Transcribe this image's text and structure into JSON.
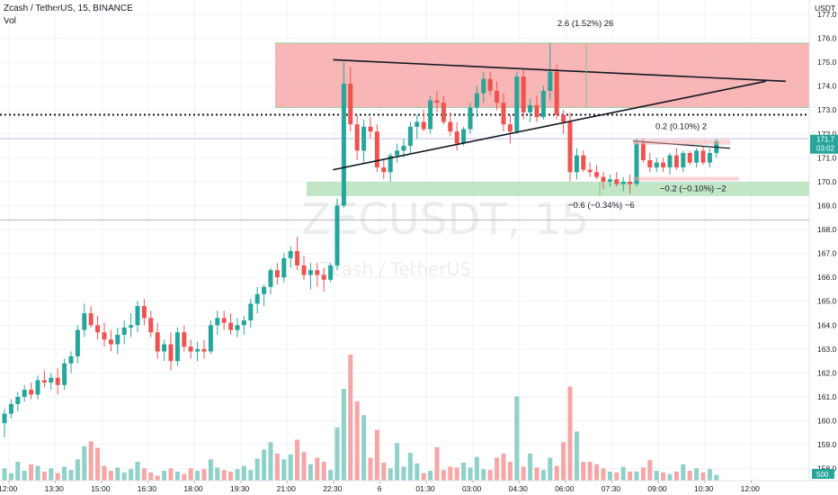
{
  "header": {
    "title": "Zcash / TetherUS, 15, BINANCE",
    "volume_label": "Vol"
  },
  "watermark": {
    "symbol": "ZECUSDT, 15",
    "name": "Zcash / TetherUS"
  },
  "axis": {
    "currency": "USDT",
    "current_price_label": "171.7",
    "countdown_label": "03:02",
    "volume_tag": "500"
  },
  "chart_data": {
    "type": "candlestick",
    "title": "Zcash / TetherUS, 15, BINANCE",
    "ylim": [
      157.5,
      177.6
    ],
    "y_ticks": [
      158.0,
      159.0,
      160.0,
      161.0,
      162.0,
      163.0,
      164.0,
      165.0,
      166.0,
      167.0,
      168.0,
      169.0,
      170.0,
      171.0,
      172.0,
      173.0,
      174.0,
      175.0,
      176.0,
      177.0
    ],
    "x_tick_labels": [
      "12:00",
      "13:30",
      "15:00",
      "16:30",
      "18:00",
      "19:30",
      "21:00",
      "22:30",
      "6",
      "01:30",
      "03:00",
      "04:30",
      "06:00",
      "07:30",
      "09:00",
      "10:30",
      "12:00"
    ],
    "volume_tag_value": 500,
    "candles_ohlc": [
      [
        159.9,
        160.5,
        159.3,
        160.3
      ],
      [
        160.3,
        160.9,
        160.1,
        160.7
      ],
      [
        160.7,
        161.2,
        160.4,
        161.0
      ],
      [
        161.0,
        161.5,
        160.8,
        161.3
      ],
      [
        161.3,
        161.6,
        160.9,
        161.1
      ],
      [
        161.1,
        161.9,
        160.9,
        161.7
      ],
      [
        161.7,
        162.1,
        161.4,
        161.6
      ],
      [
        161.6,
        162.0,
        161.3,
        161.8
      ],
      [
        161.8,
        162.2,
        161.1,
        161.5
      ],
      [
        161.5,
        162.6,
        161.3,
        162.4
      ],
      [
        162.4,
        162.9,
        162.0,
        162.7
      ],
      [
        162.7,
        164.0,
        162.4,
        163.8
      ],
      [
        163.8,
        164.9,
        163.5,
        164.5
      ],
      [
        164.5,
        164.8,
        163.9,
        164.0
      ],
      [
        164.0,
        164.4,
        163.4,
        163.7
      ],
      [
        163.7,
        164.1,
        163.1,
        163.4
      ],
      [
        163.4,
        163.8,
        162.9,
        163.2
      ],
      [
        163.2,
        163.9,
        162.8,
        163.6
      ],
      [
        163.6,
        164.2,
        163.2,
        163.9
      ],
      [
        163.9,
        164.5,
        163.5,
        164.0
      ],
      [
        164.0,
        165.0,
        163.7,
        164.8
      ],
      [
        164.8,
        165.1,
        164.0,
        164.3
      ],
      [
        164.3,
        164.6,
        163.5,
        163.7
      ],
      [
        163.7,
        164.1,
        162.6,
        162.9
      ],
      [
        162.9,
        163.4,
        162.5,
        163.2
      ],
      [
        163.2,
        163.7,
        162.1,
        162.5
      ],
      [
        162.5,
        163.9,
        162.3,
        163.7
      ],
      [
        163.7,
        164.0,
        162.9,
        163.1
      ],
      [
        163.1,
        163.4,
        162.6,
        162.9
      ],
      [
        162.9,
        163.3,
        162.5,
        163.0
      ],
      [
        163.0,
        163.4,
        162.6,
        162.9
      ],
      [
        162.9,
        164.2,
        162.8,
        164.0
      ],
      [
        164.0,
        164.6,
        163.6,
        164.3
      ],
      [
        164.3,
        164.6,
        163.8,
        164.1
      ],
      [
        164.1,
        164.5,
        163.6,
        163.8
      ],
      [
        163.8,
        164.3,
        163.5,
        164.0
      ],
      [
        164.0,
        164.4,
        163.6,
        164.2
      ],
      [
        164.2,
        165.1,
        163.9,
        164.9
      ],
      [
        164.9,
        165.6,
        164.5,
        165.3
      ],
      [
        165.3,
        165.7,
        164.8,
        165.6
      ],
      [
        165.6,
        166.4,
        165.3,
        166.3
      ],
      [
        166.3,
        166.6,
        165.7,
        166.0
      ],
      [
        166.0,
        167.0,
        165.8,
        166.8
      ],
      [
        166.8,
        167.3,
        166.4,
        167.1
      ],
      [
        167.1,
        167.7,
        166.3,
        166.5
      ],
      [
        166.5,
        166.9,
        165.9,
        166.1
      ],
      [
        166.1,
        166.6,
        165.5,
        166.3
      ],
      [
        166.3,
        166.6,
        165.6,
        166.1
      ],
      [
        166.1,
        166.4,
        165.4,
        165.9
      ],
      [
        165.9,
        166.6,
        165.8,
        166.5
      ],
      [
        166.5,
        169.3,
        166.3,
        169.0
      ],
      [
        169.0,
        175.0,
        168.9,
        174.1
      ],
      [
        174.1,
        174.8,
        172.1,
        172.4
      ],
      [
        172.4,
        172.8,
        170.9,
        171.3
      ],
      [
        171.3,
        172.6,
        170.8,
        172.3
      ],
      [
        172.3,
        172.7,
        171.8,
        172.1
      ],
      [
        172.1,
        172.4,
        170.4,
        170.6
      ],
      [
        170.6,
        170.9,
        170.1,
        170.4
      ],
      [
        170.4,
        171.2,
        170.0,
        171.1
      ],
      [
        171.1,
        171.6,
        170.8,
        171.3
      ],
      [
        171.3,
        171.8,
        171.0,
        171.5
      ],
      [
        171.5,
        172.5,
        171.2,
        172.3
      ],
      [
        172.3,
        172.8,
        171.8,
        172.5
      ],
      [
        172.5,
        173.0,
        172.1,
        172.2
      ],
      [
        172.2,
        173.6,
        172.0,
        173.4
      ],
      [
        173.4,
        173.8,
        172.9,
        173.3
      ],
      [
        173.3,
        173.6,
        172.4,
        172.5
      ],
      [
        172.5,
        172.9,
        171.9,
        172.1
      ],
      [
        172.1,
        172.5,
        171.3,
        171.6
      ],
      [
        171.6,
        172.3,
        171.5,
        172.2
      ],
      [
        172.2,
        173.3,
        172.0,
        173.1
      ],
      [
        173.1,
        174.0,
        172.7,
        173.7
      ],
      [
        173.7,
        174.6,
        173.3,
        174.3
      ],
      [
        174.3,
        174.6,
        173.6,
        173.8
      ],
      [
        173.8,
        174.2,
        173.0,
        173.3
      ],
      [
        173.3,
        173.7,
        172.1,
        172.4
      ],
      [
        172.4,
        172.8,
        171.6,
        172.1
      ],
      [
        172.1,
        174.6,
        172.0,
        174.4
      ],
      [
        174.4,
        174.7,
        172.6,
        172.9
      ],
      [
        172.9,
        173.5,
        172.5,
        173.2
      ],
      [
        173.2,
        173.6,
        172.5,
        172.7
      ],
      [
        172.7,
        174.0,
        172.6,
        173.8
      ],
      [
        173.8,
        175.8,
        173.4,
        174.6
      ],
      [
        174.6,
        174.9,
        172.6,
        172.8
      ],
      [
        172.8,
        173.0,
        172.0,
        172.5
      ],
      [
        172.5,
        172.9,
        170.0,
        170.4
      ],
      [
        170.4,
        171.4,
        170.1,
        171.1
      ],
      [
        171.1,
        171.3,
        170.4,
        170.5
      ],
      [
        170.5,
        170.8,
        170.2,
        170.4
      ],
      [
        170.4,
        170.7,
        170.1,
        170.2
      ],
      [
        170.2,
        170.4,
        169.7,
        170.0
      ],
      [
        170.0,
        170.3,
        169.8,
        170.1
      ],
      [
        170.1,
        170.4,
        169.8,
        169.9
      ],
      [
        169.9,
        170.2,
        169.6,
        170.0
      ],
      [
        170.0,
        170.3,
        169.5,
        169.9
      ],
      [
        169.9,
        171.8,
        169.8,
        171.6
      ],
      [
        171.6,
        171.8,
        170.8,
        170.9
      ],
      [
        170.9,
        171.2,
        170.4,
        170.6
      ],
      [
        170.6,
        171.0,
        170.4,
        170.8
      ],
      [
        170.8,
        171.0,
        170.4,
        170.6
      ],
      [
        170.6,
        171.2,
        170.3,
        171.1
      ],
      [
        171.1,
        171.4,
        170.5,
        170.6
      ],
      [
        170.6,
        171.3,
        170.4,
        171.2
      ],
      [
        171.2,
        171.3,
        170.7,
        170.8
      ],
      [
        170.8,
        171.4,
        170.6,
        171.3
      ],
      [
        171.3,
        171.5,
        170.7,
        170.8
      ],
      [
        170.8,
        171.4,
        170.6,
        171.2
      ],
      [
        171.2,
        171.8,
        171.0,
        171.7
      ]
    ],
    "volumes": [
      150,
      90,
      230,
      120,
      200,
      180,
      110,
      150,
      90,
      170,
      130,
      260,
      420,
      480,
      400,
      180,
      120,
      160,
      100,
      140,
      230,
      150,
      100,
      60,
      120,
      150,
      110,
      80,
      150,
      120,
      140,
      260,
      160,
      130,
      110,
      140,
      180,
      130,
      270,
      380,
      470,
      330,
      260,
      320,
      500,
      350,
      200,
      280,
      230,
      130,
      650,
      1120,
      1540,
      970,
      800,
      280,
      620,
      220,
      150,
      460,
      170,
      340,
      210,
      90,
      120,
      410,
      130,
      170,
      160,
      220,
      160,
      290,
      140,
      130,
      280,
      330,
      230,
      1030,
      170,
      330,
      160,
      130,
      280,
      180,
      470,
      1150,
      600,
      230,
      230,
      200,
      150,
      110,
      100,
      170,
      110,
      110,
      160,
      250,
      120,
      100,
      80,
      110,
      200,
      120,
      150,
      100,
      140,
      70
    ],
    "zones": [
      {
        "kind": "supply",
        "y0": 173.1,
        "y1": 175.8,
        "color": "#f7a9a9"
      },
      {
        "kind": "demand",
        "y0": 169.4,
        "y1": 170.0,
        "color": "#b7e1bc"
      }
    ],
    "horizontal_levels": [
      {
        "y": 172.8,
        "style": "dotted",
        "color": "#131722"
      },
      {
        "y": 175.8,
        "style": "solid",
        "color": "#9ccf9c"
      },
      {
        "y": 173.1,
        "style": "solid",
        "color": "#9ccf9c"
      },
      {
        "y": 168.4,
        "style": "solid",
        "color": "#b2b5be"
      },
      {
        "y": 171.8,
        "style": "solid",
        "color": "#c8b8e0"
      }
    ],
    "trendlines": [
      {
        "x0_bar": 51,
        "y0": 175.1,
        "x1_bar": 140,
        "y1": 174.2
      },
      {
        "x0_bar": 51,
        "y0": 170.5,
        "x1_bar": 137,
        "y1": 174.2
      }
    ],
    "annotations": [
      {
        "text": "2.6 (1.52%) 26",
        "bar": 80,
        "price": 176.5
      },
      {
        "text": "0.2 (0.10%) 2",
        "bar": 101,
        "price": 172.2
      },
      {
        "text": "−0.6 (−0.34%) −6",
        "bar": 84,
        "price": 168.9
      },
      {
        "text": "−0.2 (−0.10%) −2",
        "bar": 103,
        "price": 169.6
      }
    ],
    "colors": {
      "up": "#26a69a",
      "down": "#ef5350",
      "volume_up": "#8ed1c8",
      "volume_down": "#f6a6a6"
    }
  }
}
